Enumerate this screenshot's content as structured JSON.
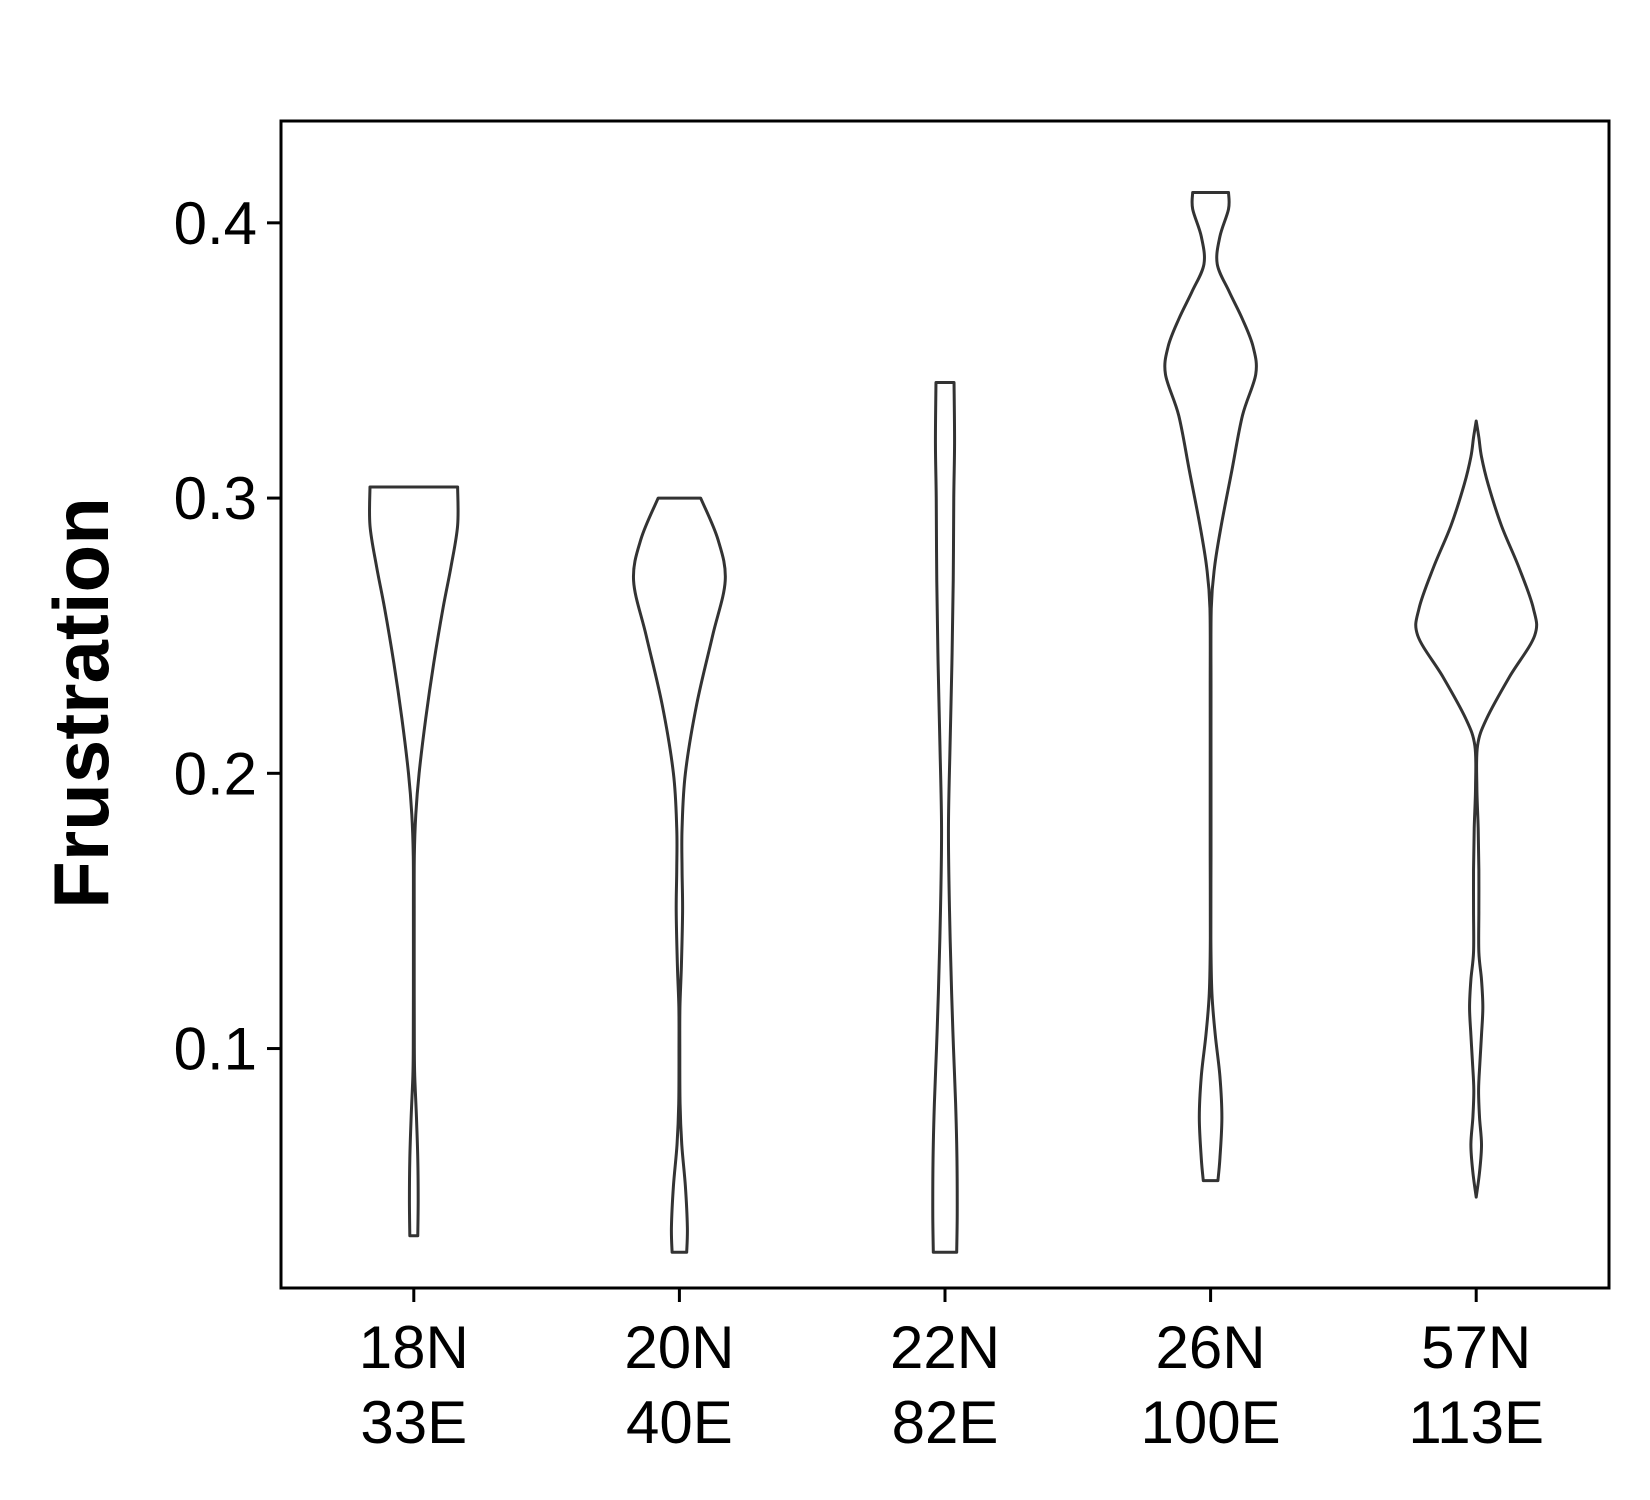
{
  "chart_data": {
    "type": "violin",
    "title": "",
    "xlabel": "",
    "ylabel": "Frustration",
    "ylim": [
      0.013,
      0.437
    ],
    "y_ticks": [
      0.1,
      0.2,
      0.3,
      0.4
    ],
    "y_tick_labels": [
      "0.1",
      "0.2",
      "0.3",
      "0.4"
    ],
    "grid": false,
    "colors": {
      "outline": "#333333",
      "fill": "#ffffff",
      "axis": "#000000"
    },
    "categories": [
      {
        "line1": "18N",
        "line2": "33E"
      },
      {
        "line1": "20N",
        "line2": "40E"
      },
      {
        "line1": "22N",
        "line2": "82E"
      },
      {
        "line1": "26N",
        "line2": "100E"
      },
      {
        "line1": "57N",
        "line2": "113E"
      }
    ],
    "violins": [
      {
        "y_min": 0.032,
        "y_max": 0.304,
        "max_half_width": 0.34,
        "profile": [
          [
            0.032,
            0.03
          ],
          [
            0.045,
            0.033
          ],
          [
            0.06,
            0.03
          ],
          [
            0.075,
            0.02
          ],
          [
            0.09,
            0.007
          ],
          [
            0.1,
            0.004
          ],
          [
            0.12,
            0.003
          ],
          [
            0.15,
            0.003
          ],
          [
            0.17,
            0.004
          ],
          [
            0.185,
            0.015
          ],
          [
            0.2,
            0.04
          ],
          [
            0.22,
            0.09
          ],
          [
            0.24,
            0.15
          ],
          [
            0.26,
            0.22
          ],
          [
            0.275,
            0.28
          ],
          [
            0.29,
            0.33
          ],
          [
            0.304,
            0.33
          ]
        ]
      },
      {
        "y_min": 0.026,
        "y_max": 0.3,
        "max_half_width": 0.35,
        "profile": [
          [
            0.026,
            0.055
          ],
          [
            0.035,
            0.06
          ],
          [
            0.05,
            0.045
          ],
          [
            0.065,
            0.018
          ],
          [
            0.08,
            0.005
          ],
          [
            0.1,
            0.003
          ],
          [
            0.115,
            0.004
          ],
          [
            0.13,
            0.015
          ],
          [
            0.15,
            0.024
          ],
          [
            0.165,
            0.02
          ],
          [
            0.18,
            0.02
          ],
          [
            0.2,
            0.045
          ],
          [
            0.225,
            0.13
          ],
          [
            0.25,
            0.25
          ],
          [
            0.27,
            0.345
          ],
          [
            0.285,
            0.29
          ],
          [
            0.3,
            0.16
          ]
        ]
      },
      {
        "y_min": 0.026,
        "y_max": 0.342,
        "max_half_width": 0.1,
        "profile": [
          [
            0.026,
            0.088
          ],
          [
            0.04,
            0.092
          ],
          [
            0.06,
            0.09
          ],
          [
            0.08,
            0.08
          ],
          [
            0.1,
            0.064
          ],
          [
            0.12,
            0.05
          ],
          [
            0.15,
            0.034
          ],
          [
            0.18,
            0.026
          ],
          [
            0.21,
            0.038
          ],
          [
            0.24,
            0.052
          ],
          [
            0.27,
            0.062
          ],
          [
            0.3,
            0.066
          ],
          [
            0.32,
            0.072
          ],
          [
            0.342,
            0.068
          ]
        ]
      },
      {
        "y_min": 0.052,
        "y_max": 0.411,
        "max_half_width": 0.345,
        "profile": [
          [
            0.052,
            0.055
          ],
          [
            0.06,
            0.07
          ],
          [
            0.075,
            0.085
          ],
          [
            0.09,
            0.07
          ],
          [
            0.105,
            0.035
          ],
          [
            0.12,
            0.01
          ],
          [
            0.14,
            0.002
          ],
          [
            0.17,
            0.003
          ],
          [
            0.2,
            0.003
          ],
          [
            0.23,
            0.003
          ],
          [
            0.26,
            0.005
          ],
          [
            0.275,
            0.03
          ],
          [
            0.29,
            0.08
          ],
          [
            0.31,
            0.16
          ],
          [
            0.33,
            0.24
          ],
          [
            0.345,
            0.34
          ],
          [
            0.355,
            0.32
          ],
          [
            0.365,
            0.24
          ],
          [
            0.375,
            0.14
          ],
          [
            0.385,
            0.05
          ],
          [
            0.395,
            0.07
          ],
          [
            0.405,
            0.135
          ],
          [
            0.411,
            0.135
          ]
        ]
      },
      {
        "y_min": 0.046,
        "y_max": 0.328,
        "max_half_width": 0.45,
        "profile": [
          [
            0.046,
            0.0
          ],
          [
            0.055,
            0.025
          ],
          [
            0.065,
            0.04
          ],
          [
            0.075,
            0.025
          ],
          [
            0.085,
            0.018
          ],
          [
            0.095,
            0.028
          ],
          [
            0.105,
            0.04
          ],
          [
            0.115,
            0.05
          ],
          [
            0.125,
            0.04
          ],
          [
            0.135,
            0.02
          ],
          [
            0.15,
            0.02
          ],
          [
            0.165,
            0.02
          ],
          [
            0.18,
            0.015
          ],
          [
            0.195,
            0.005
          ],
          [
            0.21,
            0.01
          ],
          [
            0.22,
            0.08
          ],
          [
            0.235,
            0.25
          ],
          [
            0.25,
            0.44
          ],
          [
            0.26,
            0.43
          ],
          [
            0.275,
            0.32
          ],
          [
            0.29,
            0.19
          ],
          [
            0.305,
            0.09
          ],
          [
            0.315,
            0.04
          ],
          [
            0.322,
            0.02
          ],
          [
            0.328,
            0.0
          ]
        ]
      }
    ]
  }
}
